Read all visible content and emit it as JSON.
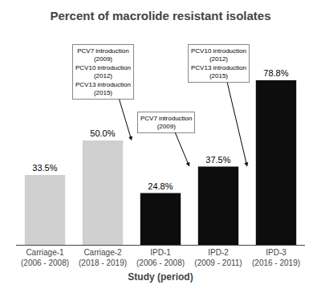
{
  "chart_data": {
    "type": "bar",
    "title": "Percent of macrolide resistant isolates",
    "xlabel": "Study (period)",
    "categories": [
      "Carriage-1\n(2006 - 2008)",
      "Carriage-2\n(2018 - 2019)",
      "IPD-1\n(2006 - 2008)",
      "IPD-2\n(2009 - 2011)",
      "IPD-3\n(2016 - 2019)"
    ],
    "values": [
      33.5,
      50.0,
      24.8,
      37.5,
      78.8
    ],
    "value_labels": [
      "33.5%",
      "50.0%",
      "24.8%",
      "37.5%",
      "78.8%"
    ],
    "data_labels": true,
    "colors": [
      "#d0d0d0",
      "#d0d0d0",
      "#0d0d0d",
      "#0d0d0d",
      "#0d0d0d"
    ],
    "ylim": [
      0,
      100
    ],
    "grid": false,
    "tick_labels": "x",
    "annotations": [
      "PCV7 introduction\n(2009)\nPCV10 introduction\n(2012)\nPCV13 introduction\n(2015)",
      "PCV7 introduction\n(2009)",
      "PCV10 introduction\n(2012)\nPCV13 introduction\n(2015)"
    ]
  }
}
